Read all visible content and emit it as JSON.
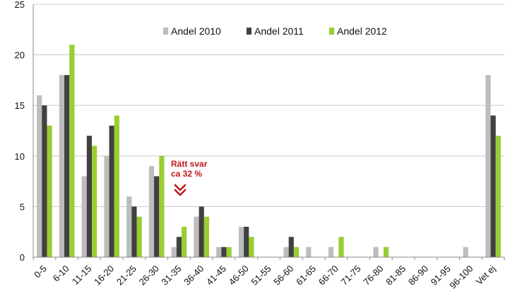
{
  "chart_data": {
    "type": "bar",
    "categories": [
      "0-5",
      "6-10",
      "11-15",
      "16-20",
      "21-25",
      "26-30",
      "31-35",
      "36-40",
      "41-45",
      "46-50",
      "51-55",
      "56-60",
      "61-65",
      "66-70",
      "71-75",
      "76-80",
      "81-85",
      "86-90",
      "91-95",
      "96-100",
      "Vet ej"
    ],
    "series": [
      {
        "name": "Andel 2010",
        "color": "#bdbdbd",
        "values": [
          16,
          18,
          8,
          10,
          6,
          9,
          1,
          4,
          1,
          3,
          0,
          1,
          1,
          1,
          0,
          1,
          0,
          0,
          0,
          1,
          18
        ]
      },
      {
        "name": "Andel 2011",
        "color": "#404040",
        "values": [
          15,
          18,
          12,
          13,
          5,
          8,
          2,
          5,
          1,
          3,
          0,
          2,
          0,
          0,
          0,
          0,
          0,
          0,
          0,
          0,
          14
        ]
      },
      {
        "name": "Andel 2012",
        "color": "#9acd32",
        "values": [
          13,
          21,
          11,
          14,
          4,
          10,
          3,
          4,
          1,
          2,
          0,
          1,
          0,
          2,
          0,
          1,
          0,
          0,
          0,
          0,
          12
        ]
      }
    ],
    "yticks": [
      "0",
      "5",
      "10",
      "15",
      "20",
      "25"
    ],
    "ylim": [
      0,
      25
    ],
    "grid": true,
    "legend_position": "top-center",
    "annotation": {
      "line1": "Rätt svar",
      "line2": "ca 32 %",
      "color": "#c0171f",
      "category": "31-35"
    }
  }
}
